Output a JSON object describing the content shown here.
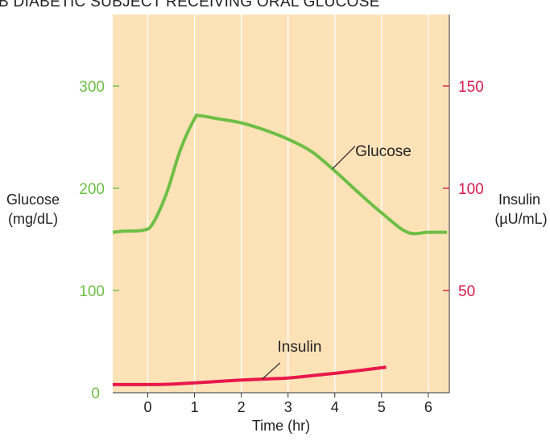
{
  "chart_data": {
    "type": "line",
    "title": "B   DIABETIC SUBJECT RECEIVING ORAL GLUCOSE",
    "xlabel": "Time (hr)",
    "x_ticks": [
      0,
      1,
      2,
      3,
      4,
      5,
      6
    ],
    "xlim": [
      -0.75,
      6.45
    ],
    "ylabel_left": [
      "Glucose",
      "(mg/dL)"
    ],
    "ylabel_right": [
      "Insulin",
      "(µU/mL)"
    ],
    "y_left_ticks": [
      0,
      100,
      200,
      300
    ],
    "y_left_lim": [
      0,
      370
    ],
    "y_right_ticks": [
      50,
      100,
      150
    ],
    "y_right_lim": [
      0,
      185
    ],
    "grid": "vertical",
    "background_color": "#fde2b8",
    "grid_color": "#ffffff",
    "colors": {
      "glucose": "#6dbf45",
      "insulin": "#e8184a",
      "left_axis": "#6dbf45",
      "right_axis": "#d81b4a"
    },
    "series": [
      {
        "name": "Glucose",
        "axis": "left",
        "x": [
          -0.75,
          -0.5,
          -0.1,
          0.1,
          0.4,
          0.7,
          1.0,
          1.1,
          1.5,
          2.0,
          2.5,
          3.0,
          3.5,
          4.0,
          4.5,
          5.0,
          5.55,
          6.0,
          6.4
        ],
        "y": [
          157,
          158,
          159,
          165,
          195,
          238,
          268,
          271,
          268,
          264,
          257,
          248,
          236,
          217,
          196,
          176,
          157,
          157,
          157
        ]
      },
      {
        "name": "Insulin",
        "axis": "right",
        "x": [
          -0.75,
          0,
          0.5,
          1.0,
          1.5,
          2.0,
          2.5,
          3.0,
          3.5,
          4.0,
          4.5,
          5.1
        ],
        "y": [
          4,
          4,
          4.2,
          4.8,
          5.5,
          6.2,
          6.7,
          7.2,
          8.3,
          9.5,
          10.8,
          12.5
        ]
      }
    ],
    "annotations": [
      {
        "text": "Glucose",
        "series": "Glucose"
      },
      {
        "text": "Insulin",
        "series": "Insulin"
      }
    ]
  }
}
